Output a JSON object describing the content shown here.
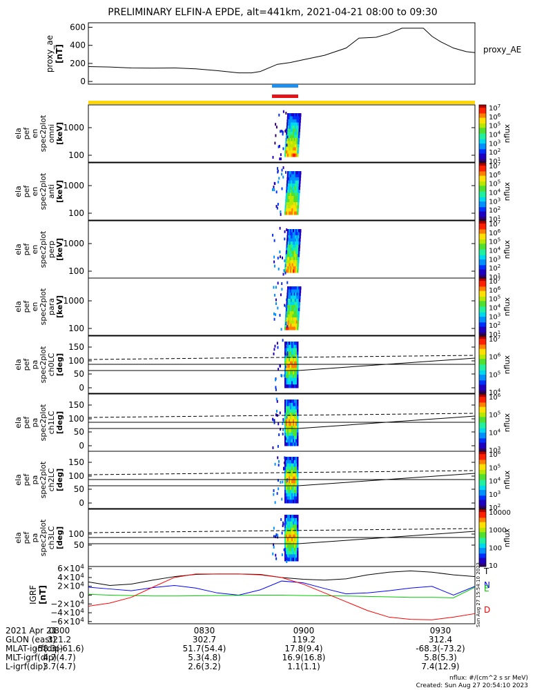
{
  "title": "PRELIMINARY ELFIN-A EPDE, alt=441km, 2021-04-21 08:00 to 09:30",
  "proxy_ae": {
    "ylabel": [
      "proxy_ae",
      "[nT]"
    ],
    "legend": "proxy_AE",
    "yticks": [
      "600",
      "400",
      "200",
      "0"
    ]
  },
  "spec_panels": [
    {
      "ylabel": [
        "ela",
        "pef",
        "en",
        "spec2plot",
        "omni",
        "[keV]"
      ],
      "yticks": [
        "1000",
        "100"
      ],
      "cb_ticks": [
        "10^7",
        "10^6",
        "10^5",
        "10^4",
        "10^3",
        "10^2",
        "10^1"
      ],
      "cb_label": "nflux"
    },
    {
      "ylabel": [
        "ela",
        "pef",
        "en",
        "spec2plot",
        "anti",
        "[keV]"
      ],
      "yticks": [
        "1000",
        "100"
      ],
      "cb_ticks": [
        "10^7",
        "10^6",
        "10^5",
        "10^4",
        "10^3",
        "10^2",
        "10^1"
      ],
      "cb_label": "nflux"
    },
    {
      "ylabel": [
        "ela",
        "pef",
        "en",
        "spec2plot",
        "perp",
        "[keV]"
      ],
      "yticks": [
        "1000",
        "100"
      ],
      "cb_ticks": [
        "10^7",
        "10^6",
        "10^5",
        "10^4",
        "10^3",
        "10^2",
        "10^1"
      ],
      "cb_label": "nflux"
    },
    {
      "ylabel": [
        "ela",
        "pef",
        "en",
        "spec2plot",
        "para",
        "[keV]"
      ],
      "yticks": [
        "1000",
        "100"
      ],
      "cb_ticks": [
        "10^7",
        "10^6",
        "10^5",
        "10^4",
        "10^3",
        "10^2",
        "10^1"
      ],
      "cb_label": "nflux"
    },
    {
      "ylabel": [
        "ela",
        "pef",
        "pa",
        "spec2plot",
        "ch0LC",
        "[deg]"
      ],
      "yticks": [
        "150",
        "100",
        "50",
        "0"
      ],
      "cb_ticks": [
        "10^7",
        "10^6",
        "10^5",
        "10^4"
      ],
      "cb_label": "nflux"
    },
    {
      "ylabel": [
        "ela",
        "pef",
        "pa",
        "spec2plot",
        "ch1LC",
        "[deg]"
      ],
      "yticks": [
        "150",
        "100",
        "50",
        "0"
      ],
      "cb_ticks": [
        "10^6",
        "10^5",
        "10^4",
        "10^3"
      ],
      "cb_label": "nflux"
    },
    {
      "ylabel": [
        "ela",
        "pef",
        "pa",
        "spec2plot",
        "ch2LC",
        "[deg]"
      ],
      "yticks": [
        "150",
        "100",
        "50",
        "0"
      ],
      "cb_ticks": [
        "10^6",
        "10^5",
        "10^4",
        "10^3",
        "10^2"
      ],
      "cb_label": "nflux"
    },
    {
      "ylabel": [
        "ela",
        "pef",
        "pa",
        "spec2plot",
        "ch3LC",
        "[deg]"
      ],
      "yticks": [
        "100",
        "50"
      ],
      "cb_ticks": [
        "10000",
        "1000",
        "100",
        "10"
      ],
      "cb_label": "nflux"
    }
  ],
  "igrf": {
    "ylabel": [
      "IGRF",
      "[nT]"
    ],
    "yticks": [
      "6×10^4",
      "4×10^4",
      "2×10^4",
      "0",
      "−2×10^4",
      "−4×10^4",
      "−6×10^4"
    ],
    "legend": [
      {
        "name": "T",
        "color": "#000000"
      },
      {
        "name": "N",
        "color": "#0000ff"
      },
      {
        "name": "E",
        "color": "#00cc00"
      },
      {
        "name": "D",
        "color": "#ff0000"
      }
    ],
    "side_stamp": "Sun Aug 27 15:54:10 2023"
  },
  "footer": {
    "rows": [
      {
        "name": "2021 Apr 21",
        "values": [
          "0800",
          "0830",
          "0900",
          "0930"
        ]
      },
      {
        "name": "GLON (east)",
        "values": [
          "321.2",
          "302.7",
          "119.2",
          "312.4"
        ]
      },
      {
        "name": "MLAT-igrf(dip)",
        "values": [
          "-58.3(-61.6)",
          "51.7(54.4)",
          "17.8(9.4)",
          "-68.3(-73.2)"
        ]
      },
      {
        "name": "MLT-igrf(dip)",
        "values": [
          "4.7(4.7)",
          "5.3(4.8)",
          "16.9(16.8)",
          "5.8(5.3)"
        ]
      },
      {
        "name": "L-igrf(dip)",
        "values": [
          "3.7(4.7)",
          "2.6(3.2)",
          "1.1(1.1)",
          "7.4(12.9)"
        ]
      }
    ],
    "note_units": "nflux: #/(cm^2 s sr MeV)",
    "note_created": "Created: Sun Aug 27 20:54:10 2023"
  },
  "colors": {
    "blue_bar": "#1f8ff0",
    "red_bar": "#e3141c",
    "yellow_bar": "#ffd700",
    "ae_line": "#000000"
  },
  "chart_data": [
    {
      "type": "line",
      "title": "PRELIMINARY ELFIN-A EPDE, alt=441km, 2021-04-21 08:00 to 09:30",
      "ylabel": "proxy_ae [nT]",
      "ylim": [
        -30,
        650
      ],
      "x_unit": "minutes after 08:00",
      "series": [
        {
          "name": "proxy_AE",
          "x": [
            0,
            5,
            10,
            15,
            20,
            25,
            30,
            35,
            38,
            40,
            42,
            44,
            47,
            50,
            55,
            60,
            63,
            67,
            70,
            73,
            75,
            78,
            80,
            82,
            85,
            88,
            90
          ],
          "values": [
            165,
            160,
            150,
            148,
            150,
            140,
            120,
            95,
            95,
            110,
            150,
            190,
            210,
            240,
            290,
            370,
            480,
            490,
            530,
            590,
            590,
            590,
            500,
            440,
            370,
            330,
            320
          ]
        }
      ]
    },
    {
      "type": "line",
      "ylabel": "IGRF [nT]",
      "ylim": [
        -65000,
        65000
      ],
      "x_unit": "minutes after 08:00",
      "series": [
        {
          "name": "T",
          "x": [
            0,
            5,
            10,
            15,
            20,
            25,
            30,
            35,
            40,
            45,
            50,
            55,
            60,
            65,
            70,
            75,
            80,
            85,
            90
          ],
          "values": [
            30000,
            22000,
            25000,
            34000,
            42000,
            47000,
            48000,
            48000,
            47000,
            40000,
            36000,
            34000,
            37000,
            46000,
            52000,
            55000,
            52000,
            46000,
            42000
          ]
        },
        {
          "name": "N",
          "x": [
            0,
            5,
            10,
            15,
            20,
            25,
            30,
            35,
            40,
            45,
            50,
            55,
            60,
            65,
            70,
            75,
            80,
            85,
            90
          ],
          "values": [
            18000,
            14000,
            10000,
            17000,
            22000,
            16000,
            5000,
            0,
            12000,
            32000,
            28000,
            15000,
            3000,
            5000,
            10000,
            16000,
            20000,
            0,
            20000
          ]
        },
        {
          "name": "E",
          "x": [
            0,
            5,
            10,
            15,
            20,
            25,
            30,
            35,
            40,
            45,
            50,
            55,
            60,
            65,
            70,
            75,
            80,
            85,
            90
          ],
          "values": [
            2000,
            0,
            -1000,
            -2000,
            -2000,
            -1500,
            -1000,
            -500,
            0,
            0,
            -1000,
            -1500,
            -2000,
            -3000,
            -4000,
            -5000,
            -5000,
            -6000,
            18000
          ]
        },
        {
          "name": "D",
          "x": [
            0,
            5,
            10,
            15,
            20,
            25,
            30,
            35,
            40,
            45,
            50,
            55,
            60,
            65,
            70,
            75,
            80,
            85,
            90
          ],
          "values": [
            -25000,
            -18000,
            -5000,
            18000,
            40000,
            48000,
            48000,
            48000,
            46000,
            40000,
            25000,
            5000,
            -15000,
            -35000,
            -50000,
            -55000,
            -56000,
            -50000,
            -42000
          ]
        }
      ]
    }
  ]
}
